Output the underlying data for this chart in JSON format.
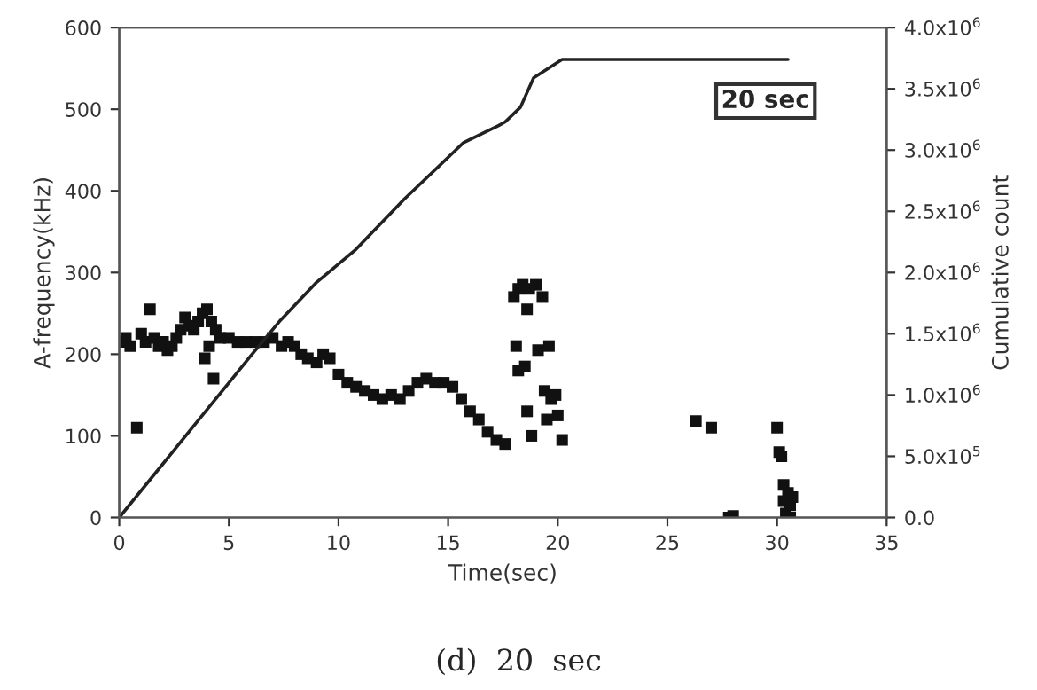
{
  "chart_data": {
    "type": "scatter",
    "xlabel": "Time(sec)",
    "ylabel": "A-frequency(kHz)",
    "y2label": "Cumulative count",
    "annotations": [
      "20 sec",
      "(d)  20  sec"
    ],
    "xlim": [
      0,
      35
    ],
    "xticks": [
      0,
      5,
      10,
      15,
      20,
      25,
      30,
      35
    ],
    "ylim": [
      0,
      600
    ],
    "yticks": [
      0,
      100,
      200,
      300,
      400,
      500,
      600
    ],
    "y2lim": [
      0,
      4000000
    ],
    "y2ticks": [
      {
        "value": 0,
        "label": "0.0"
      },
      {
        "value": 500000,
        "label": "5.0x10$^{5}$"
      },
      {
        "value": 1000000,
        "label": "1.0x10$^{6}$"
      },
      {
        "value": 1500000,
        "label": "1.5x10$^{6}$"
      },
      {
        "value": 2000000,
        "label": "2.0x10$^{6}$"
      },
      {
        "value": 2500000,
        "label": "2.5x10$^{6}$"
      },
      {
        "value": 3000000,
        "label": "3.0x10$^{6}$"
      },
      {
        "value": 3500000,
        "label": "3.5x10$^{6}$"
      },
      {
        "value": 4000000,
        "label": "4.0x10$^{6}$"
      }
    ],
    "grid": false,
    "legend": false,
    "series": [
      {
        "marker": "square",
        "color": "#111111",
        "x": [
          0.1,
          0.3,
          0.5,
          0.8,
          1.0,
          1.2,
          1.4,
          1.6,
          1.8,
          2.0,
          2.2,
          2.4,
          2.6,
          2.8,
          3.0,
          3.2,
          3.4,
          3.6,
          3.8,
          4.0,
          4.2,
          4.4,
          4.1,
          4.3,
          3.9,
          4.6,
          5.0,
          5.4,
          5.8,
          6.2,
          6.6,
          7.0,
          7.4,
          7.7,
          8.0,
          8.3,
          8.6,
          9.0,
          9.3,
          9.6,
          10.0,
          10.4,
          10.8,
          11.2,
          11.6,
          12.0,
          12.4,
          12.8,
          13.2,
          13.6,
          14.0,
          14.4,
          14.8,
          15.2,
          15.6,
          16.0,
          16.4,
          16.8,
          17.2,
          17.6,
          18.0,
          18.2,
          18.4,
          18.7,
          19.0,
          19.3,
          18.1,
          18.5,
          19.1,
          19.6,
          18.2,
          18.6,
          19.4,
          19.7,
          18.8,
          19.5,
          19.9,
          20.2,
          18.6,
          20.0,
          26.3,
          27.0,
          27.8,
          28.0,
          30.0,
          30.1,
          30.2,
          30.3,
          30.3,
          30.4,
          30.5,
          30.6,
          30.6,
          30.7
        ],
        "values": [
          215,
          220,
          210,
          110,
          225,
          215,
          255,
          220,
          210,
          215,
          205,
          210,
          220,
          230,
          245,
          235,
          230,
          240,
          250,
          255,
          240,
          230,
          210,
          170,
          195,
          220,
          220,
          215,
          215,
          215,
          215,
          220,
          210,
          215,
          210,
          200,
          195,
          190,
          200,
          195,
          175,
          165,
          160,
          155,
          150,
          145,
          150,
          145,
          155,
          165,
          170,
          165,
          165,
          160,
          145,
          130,
          120,
          105,
          95,
          90,
          270,
          280,
          285,
          280,
          285,
          270,
          210,
          185,
          205,
          210,
          180,
          130,
          155,
          145,
          100,
          120,
          150,
          95,
          255,
          125,
          118,
          110,
          0,
          2,
          110,
          80,
          75,
          40,
          20,
          5,
          30,
          0,
          15,
          25
        ]
      },
      {
        "type": "line",
        "axis": "y2",
        "marker": "none",
        "line_style": "solid",
        "color": "#222222",
        "x": [
          0,
          2,
          4,
          6,
          7.3,
          9,
          10.8,
          13,
          15.7,
          17.3,
          17.6,
          18.3,
          18.9,
          20.2,
          30.5
        ],
        "values": [
          0,
          440000,
          880000,
          1320000,
          1600000,
          1920000,
          2190000,
          2600000,
          3060000,
          3200000,
          3230000,
          3350000,
          3590000,
          3740000,
          3740000
        ]
      }
    ]
  }
}
